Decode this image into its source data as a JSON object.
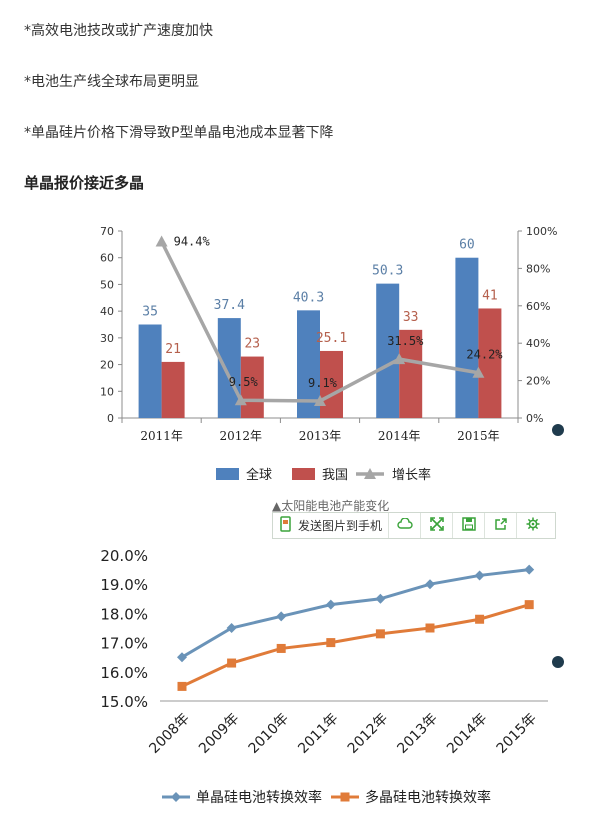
{
  "bullets": [
    "*高效电池技改或扩产速度加快",
    "*电池生产线全球布局更明显",
    "*单晶硅片价格下滑导致P型单晶电池成本显著下降"
  ],
  "heading": "单晶报价接近多晶",
  "caption": "▲太阳能电池产能变化",
  "toolbar": {
    "send_label": "发送图片到手机"
  },
  "colors": {
    "global": "#4f81bd",
    "china": "#c0504d",
    "growth": "#a6a6a6",
    "mono": "#6a93b8",
    "poly": "#e07b39",
    "toolbar_icon": "#3aa33a"
  },
  "icons": [
    "phone-icon",
    "cloud-icon",
    "expand-icon",
    "save-icon",
    "share-icon",
    "gear-icon"
  ],
  "chart_data": [
    {
      "type": "bar",
      "categories": [
        "2011年",
        "2012年",
        "2013年",
        "2014年",
        "2015年"
      ],
      "series": [
        {
          "name": "全球",
          "values": [
            35,
            37.4,
            40.3,
            50.3,
            60
          ],
          "labels": [
            "35",
            "37.4",
            "40.3",
            "50.3",
            "60"
          ]
        },
        {
          "name": "我国",
          "values": [
            21,
            23,
            25.1,
            33,
            41
          ],
          "labels": [
            "21",
            "23",
            "25.1",
            "33",
            "41"
          ]
        },
        {
          "name": "增长率",
          "type": "line",
          "axis": "right",
          "values": [
            94.4,
            9.5,
            9.1,
            31.5,
            24.2
          ],
          "labels": [
            "94.4%",
            "9.5%",
            "9.1%",
            "31.5%",
            "24.2%"
          ]
        }
      ],
      "ylim": [
        0,
        70
      ],
      "yticks": [
        "0",
        "10",
        "20",
        "30",
        "40",
        "50",
        "60",
        "70"
      ],
      "y2lim": [
        0,
        100
      ],
      "y2ticks": [
        "0%",
        "20%",
        "40%",
        "60%",
        "80%",
        "100%"
      ],
      "legend": "bottom"
    },
    {
      "type": "line",
      "categories": [
        "2008年",
        "2009年",
        "2010年",
        "2011年",
        "2012年",
        "2013年",
        "2014年",
        "2015年"
      ],
      "series": [
        {
          "name": "单晶硅电池转换效率",
          "values": [
            16.5,
            17.5,
            17.9,
            18.3,
            18.5,
            19.0,
            19.3,
            19.5
          ]
        },
        {
          "name": "多晶硅电池转换效率",
          "values": [
            15.5,
            16.3,
            16.8,
            17.0,
            17.3,
            17.5,
            17.8,
            18.3
          ]
        }
      ],
      "ylim": [
        15,
        20
      ],
      "yticks": [
        "15.0%",
        "16.0%",
        "17.0%",
        "18.0%",
        "19.0%",
        "20.0%"
      ],
      "legend": "bottom"
    }
  ]
}
